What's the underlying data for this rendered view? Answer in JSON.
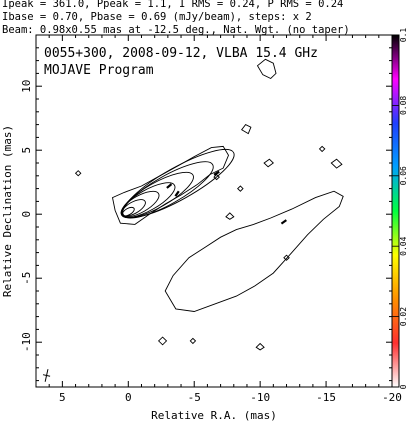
{
  "header": {
    "line1": "Ipeak = 361.0, Ppeak = 1.1, I RMS = 0.24, P RMS = 0.24",
    "line2": "Ibase = 0.70, Pbase = 0.69 (mJy/beam), steps: x 2",
    "line3": "Beam: 0.98x0.55 mas at -12.5 deg., Nat. Wgt. (no taper)"
  },
  "inset": {
    "title": "0055+300, 2008-09-12, VLBA 15.4 GHz",
    "program": "MOJAVE Program"
  },
  "chart_data": {
    "type": "contour",
    "xlabel": "Relative R.A. (mas)",
    "ylabel": "Relative Declination (mas)",
    "xlim": [
      7,
      -20
    ],
    "ylim": [
      -13.5,
      14
    ],
    "xticks": [
      5,
      0,
      -5,
      -10,
      -15,
      -20
    ],
    "yticks": [
      10,
      5,
      0,
      -5,
      -10
    ],
    "colorbar": {
      "min": 0,
      "max": 0.1,
      "ticks": [
        "0",
        "0.02",
        "0.04",
        "0.06",
        "0.08",
        "0.1"
      ],
      "colors": [
        "#ffffff",
        "#ff3030",
        "#ff9000",
        "#ffff00",
        "#00ff40",
        "#00a0ff",
        "#2040ff",
        "#ff00ff",
        "#000000"
      ]
    },
    "core_contours": [
      {
        "cx": 0.0,
        "cy": 0.2,
        "rx": 0.5,
        "ry": 0.25
      },
      {
        "cx": -0.4,
        "cy": 0.5,
        "rx": 1.0,
        "ry": 0.45
      },
      {
        "cx": -0.9,
        "cy": 0.8,
        "rx": 1.6,
        "ry": 0.65
      },
      {
        "cx": -1.5,
        "cy": 1.1,
        "rx": 2.3,
        "ry": 0.8
      },
      {
        "cx": -2.2,
        "cy": 1.5,
        "rx": 3.1,
        "ry": 0.95
      },
      {
        "cx": -3.0,
        "cy": 1.9,
        "rx": 3.9,
        "ry": 1.1
      },
      {
        "cx": -3.8,
        "cy": 2.4,
        "rx": 4.8,
        "ry": 1.25
      }
    ],
    "extended_contours": [
      [
        [
          0.6,
          -0.7
        ],
        [
          1.0,
          0.3
        ],
        [
          1.2,
          1.3
        ],
        [
          0.3,
          1.7
        ],
        [
          -1.0,
          2.2
        ],
        [
          -2.4,
          3.0
        ],
        [
          -3.8,
          3.8
        ],
        [
          -5.0,
          4.5
        ],
        [
          -6.3,
          5.2
        ],
        [
          -7.2,
          5.3
        ],
        [
          -7.6,
          4.6
        ],
        [
          -7.2,
          3.6
        ],
        [
          -6.2,
          3.1
        ],
        [
          -5.2,
          2.3
        ],
        [
          -4.0,
          1.5
        ],
        [
          -2.8,
          0.8
        ],
        [
          -1.6,
          0.0
        ],
        [
          -0.5,
          -0.8
        ],
        [
          0.6,
          -0.7
        ]
      ],
      [
        [
          -2.8,
          -6.0
        ],
        [
          -3.4,
          -4.8
        ],
        [
          -4.6,
          -3.4
        ],
        [
          -5.8,
          -2.6
        ],
        [
          -7.0,
          -1.8
        ],
        [
          -8.2,
          -1.2
        ],
        [
          -9.5,
          -0.8
        ],
        [
          -10.8,
          -0.3
        ],
        [
          -12.4,
          0.4
        ],
        [
          -14.2,
          1.3
        ],
        [
          -15.6,
          1.8
        ],
        [
          -16.3,
          1.4
        ],
        [
          -16.0,
          0.6
        ],
        [
          -14.8,
          -0.4
        ],
        [
          -13.6,
          -1.6
        ],
        [
          -12.4,
          -3.0
        ],
        [
          -11.0,
          -4.6
        ],
        [
          -9.6,
          -5.6
        ],
        [
          -8.2,
          -6.4
        ],
        [
          -6.6,
          -7.0
        ],
        [
          -5.0,
          -7.6
        ],
        [
          -3.6,
          -7.4
        ],
        [
          -2.8,
          -6.0
        ]
      ],
      [
        [
          -9.8,
          11.6
        ],
        [
          -10.4,
          12.1
        ],
        [
          -11.0,
          11.8
        ],
        [
          -11.2,
          11.0
        ],
        [
          -10.8,
          10.6
        ],
        [
          -10.2,
          10.9
        ],
        [
          -9.8,
          11.6
        ]
      ],
      [
        [
          -8.6,
          6.6
        ],
        [
          -8.9,
          7.0
        ],
        [
          -9.3,
          6.8
        ],
        [
          -9.1,
          6.3
        ],
        [
          -8.6,
          6.6
        ]
      ],
      [
        [
          -10.3,
          4.0
        ],
        [
          -10.7,
          4.3
        ],
        [
          -11.0,
          4.0
        ],
        [
          -10.6,
          3.7
        ],
        [
          -10.3,
          4.0
        ]
      ],
      [
        [
          -15.4,
          4.0
        ],
        [
          -15.8,
          4.3
        ],
        [
          -16.2,
          3.9
        ],
        [
          -15.8,
          3.6
        ],
        [
          -15.4,
          4.0
        ]
      ],
      [
        [
          -7.4,
          -0.2
        ],
        [
          -7.7,
          0.1
        ],
        [
          -8.0,
          -0.2
        ],
        [
          -7.7,
          -0.4
        ],
        [
          -7.4,
          -0.2
        ]
      ],
      [
        [
          -2.3,
          -9.9
        ],
        [
          -2.6,
          -9.6
        ],
        [
          -2.9,
          -9.9
        ],
        [
          -2.6,
          -10.2
        ],
        [
          -2.3,
          -9.9
        ]
      ],
      [
        [
          -9.7,
          -10.4
        ],
        [
          -10.0,
          -10.1
        ],
        [
          -10.3,
          -10.4
        ],
        [
          -10.0,
          -10.6
        ],
        [
          -9.7,
          -10.4
        ]
      ],
      [
        [
          -4.7,
          -9.9
        ],
        [
          -4.9,
          -9.7
        ],
        [
          -5.1,
          -9.9
        ],
        [
          -4.9,
          -10.1
        ],
        [
          -4.7,
          -9.9
        ]
      ],
      [
        [
          4.0,
          3.2
        ],
        [
          3.8,
          3.4
        ],
        [
          3.6,
          3.2
        ],
        [
          3.8,
          3.0
        ],
        [
          4.0,
          3.2
        ]
      ],
      [
        [
          -8.3,
          2.0
        ],
        [
          -8.5,
          2.2
        ],
        [
          -8.7,
          2.0
        ],
        [
          -8.5,
          1.8
        ],
        [
          -8.3,
          2.0
        ]
      ],
      [
        [
          -6.5,
          2.9
        ],
        [
          -6.7,
          3.1
        ],
        [
          -6.9,
          2.9
        ],
        [
          -6.7,
          2.7
        ],
        [
          -6.5,
          2.9
        ]
      ],
      [
        [
          -11.8,
          -3.4
        ],
        [
          -12.0,
          -3.2
        ],
        [
          -12.2,
          -3.4
        ],
        [
          -12.0,
          -3.6
        ],
        [
          -11.8,
          -3.4
        ]
      ],
      [
        [
          -14.5,
          5.1
        ],
        [
          -14.7,
          5.3
        ],
        [
          -14.9,
          5.1
        ],
        [
          -14.7,
          4.9
        ],
        [
          -14.5,
          5.1
        ]
      ]
    ],
    "polarization_ticks": [
      {
        "x": -3.1,
        "y": 2.2,
        "angle": 40
      },
      {
        "x": -3.7,
        "y": 1.6,
        "angle": 55
      },
      {
        "x": -6.7,
        "y": 3.2,
        "angle": 30
      },
      {
        "x": -11.8,
        "y": -0.6,
        "angle": 35
      }
    ],
    "beam": {
      "x": 6.2,
      "y": -12.6,
      "major": 0.98,
      "minor": 0.55,
      "pa": -12.5
    }
  }
}
